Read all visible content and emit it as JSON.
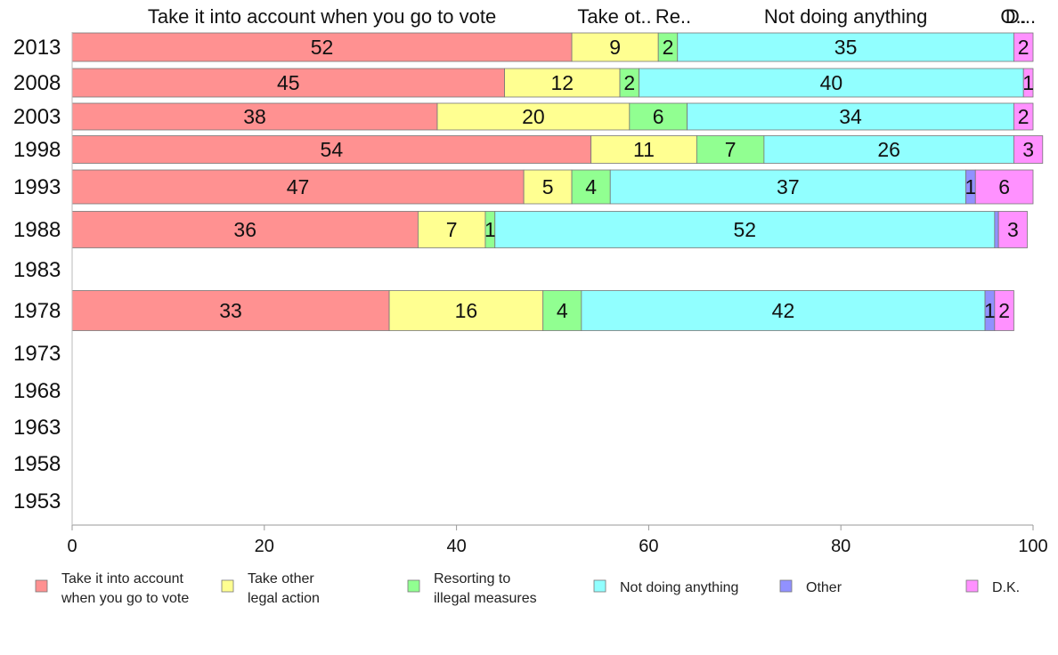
{
  "chart_data": {
    "type": "bar",
    "orientation": "horizontal",
    "stacked": true,
    "xlim": [
      0,
      100
    ],
    "x_ticks": [
      "0",
      "20",
      "40",
      "60",
      "80",
      "100"
    ],
    "top_labels": [
      {
        "text": "Take it into account when you go to vote",
        "series": 0
      },
      {
        "text": "Take ot..",
        "series": 1
      },
      {
        "text": "Re..",
        "series": 2
      },
      {
        "text": "Not doing anything",
        "series": 3
      },
      {
        "text": "O..",
        "series": 4
      },
      {
        "text": "D...",
        "series": 5
      }
    ],
    "categories": [
      "2013",
      "2008",
      "2003",
      "1998",
      "1993",
      "1988",
      "1983",
      "1978",
      "1973",
      "1968",
      "1963",
      "1958",
      "1953"
    ],
    "series": [
      {
        "name": "Take it into account when you go to vote",
        "legend_lines": [
          "Take it into account",
          "when you go to vote"
        ],
        "color": "#ff9191",
        "values": [
          52,
          45,
          38,
          54,
          47,
          36,
          null,
          33,
          null,
          null,
          null,
          null,
          null
        ]
      },
      {
        "name": "Take other legal action",
        "legend_lines": [
          "Take other",
          "legal action"
        ],
        "color": "#ffff91",
        "values": [
          9,
          12,
          20,
          11,
          5,
          7,
          null,
          16,
          null,
          null,
          null,
          null,
          null
        ]
      },
      {
        "name": "Resorting to illegal measures",
        "legend_lines": [
          "Resorting to",
          "illegal measures"
        ],
        "color": "#91ff91",
        "values": [
          2,
          2,
          6,
          7,
          4,
          1,
          null,
          4,
          null,
          null,
          null,
          null,
          null
        ]
      },
      {
        "name": "Not doing anything",
        "legend_lines": [
          "Not doing anything"
        ],
        "color": "#91ffff",
        "values": [
          35,
          40,
          34,
          26,
          37,
          52,
          null,
          42,
          null,
          null,
          null,
          null,
          null
        ]
      },
      {
        "name": "Other",
        "legend_lines": [
          "Other"
        ],
        "color": "#9191ff",
        "values": [
          0,
          0,
          0,
          0,
          1,
          0.4,
          null,
          1,
          null,
          null,
          null,
          null,
          null
        ]
      },
      {
        "name": "D.K.",
        "legend_lines": [
          "D.K."
        ],
        "color": "#ff91ff",
        "values": [
          2,
          1,
          2,
          3,
          6,
          3,
          null,
          2,
          null,
          null,
          null,
          null,
          null
        ]
      }
    ],
    "bar_labels": [
      [
        "52",
        "9",
        "2",
        "35",
        "",
        "2"
      ],
      [
        "45",
        "12",
        "2",
        "40",
        "",
        "1"
      ],
      [
        "38",
        "20",
        "6",
        "34",
        "",
        "2"
      ],
      [
        "54",
        "11",
        "7",
        "26",
        "",
        "3"
      ],
      [
        "47",
        "5",
        "4",
        "37",
        "1",
        "6"
      ],
      [
        "36",
        "7",
        "1",
        "52",
        "",
        "3"
      ],
      [],
      [
        "33",
        "16",
        "4",
        "42",
        "1",
        "2"
      ],
      [],
      [],
      [],
      [],
      []
    ],
    "legend_position": "bottom"
  }
}
